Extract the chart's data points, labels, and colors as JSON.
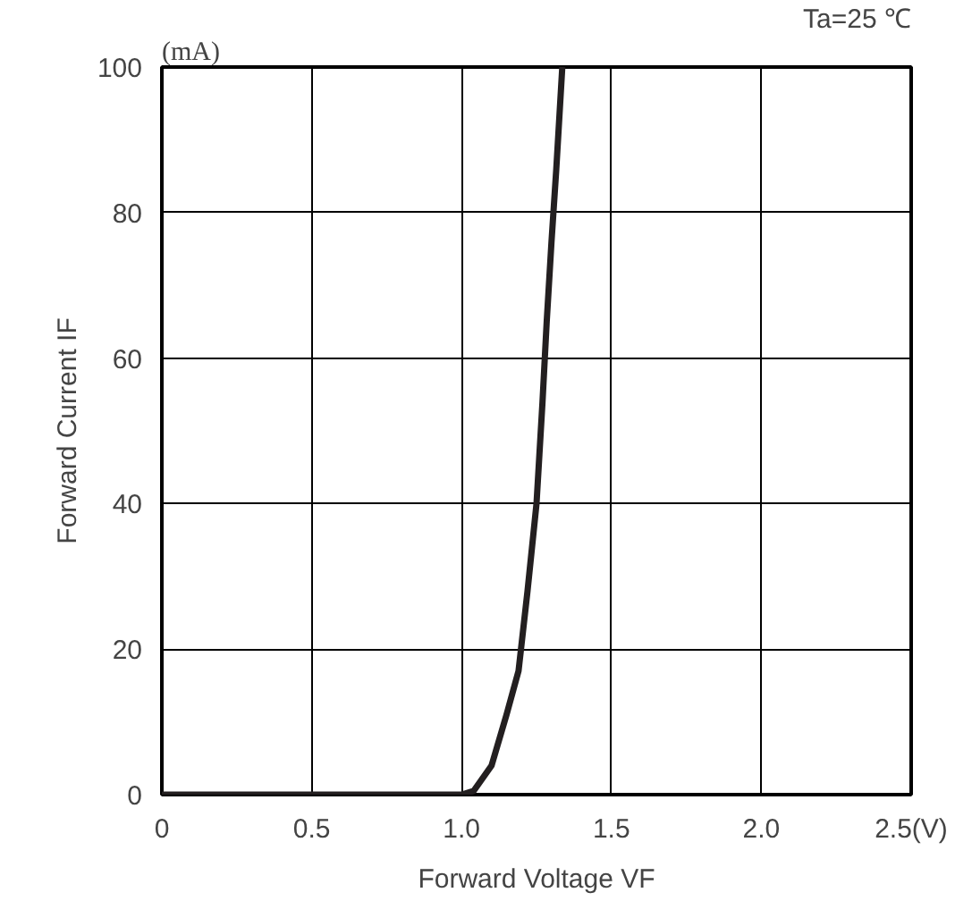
{
  "chart_data": {
    "type": "line",
    "xlabel": "Forward Voltage VF",
    "ylabel": "Forward Current IF",
    "annotations": [
      "(mA)",
      "Ta=25 ℃"
    ],
    "x": [
      0,
      0.5,
      1.0,
      1.04,
      1.1,
      1.15,
      1.19,
      1.22,
      1.25,
      1.27,
      1.284,
      1.3,
      1.316,
      1.336
    ],
    "series": [
      {
        "color": "#231f20",
        "values": [
          0,
          0,
          0,
          0.5,
          4,
          11,
          17,
          28,
          40,
          54,
          65,
          76,
          86,
          100
        ]
      }
    ],
    "xlim": [
      0,
      2.5
    ],
    "ylim": [
      0,
      100
    ],
    "xticks": [
      0,
      0.5,
      {
        "value": 1.0,
        "label": "1.0"
      },
      1.5,
      {
        "value": 2.0,
        "label": "2.0"
      },
      {
        "value": 2.5,
        "label": "2.5(V)"
      }
    ],
    "yticks": [
      0,
      20,
      40,
      60,
      80,
      100
    ],
    "grid": true,
    "marker": "none",
    "line_style": "solid"
  }
}
